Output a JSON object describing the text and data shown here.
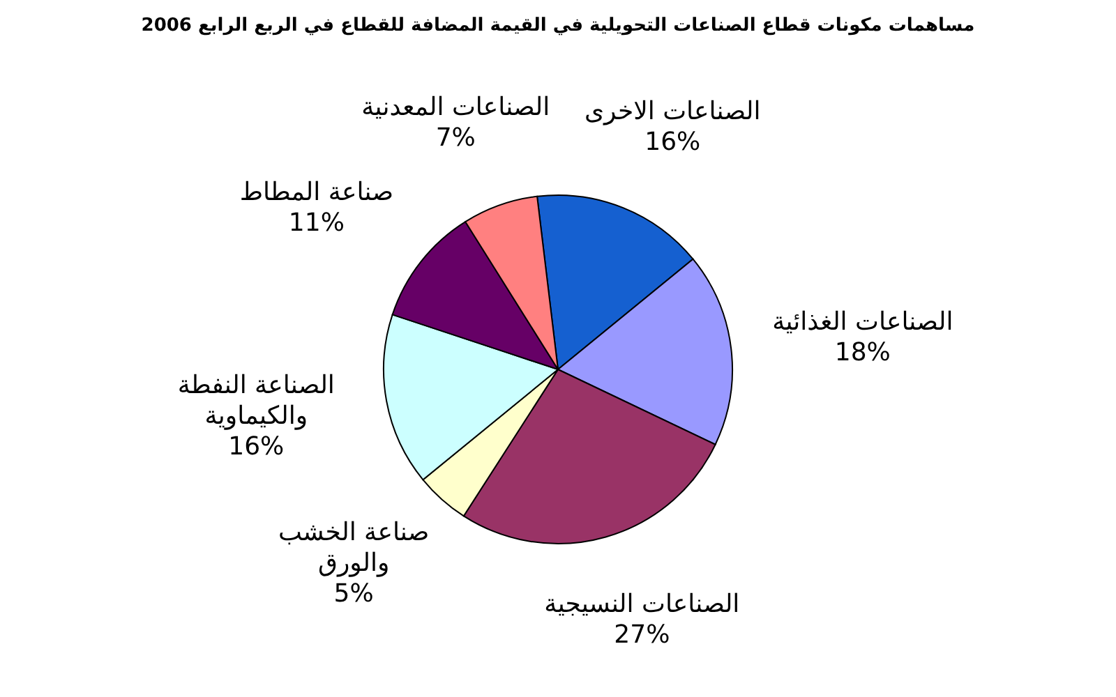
{
  "chart_data": {
    "type": "pie",
    "title": "مساهمات مكونات قطاع الصناعات التحويلية في القيمة المضافة للقطاع في الربع الرابع 2006",
    "categories": [
      "الصناعات الاخرى",
      "الصناعات الغذائية",
      "الصناعات النسيجية",
      "صناعة الخشب\nوالورق",
      "الصناعة النفطة\nوالكيماوية",
      "صناعة المطاط",
      "الصناعات المعدنية"
    ],
    "values": [
      16,
      18,
      27,
      5,
      16,
      11,
      7
    ],
    "colors": [
      "#1560d0",
      "#9999ff",
      "#993366",
      "#ffffcc",
      "#ccffff",
      "#660066",
      "#ff8080"
    ],
    "value_labels": [
      "16%",
      "18%",
      "27%",
      "5%",
      "16%",
      "11%",
      "7%"
    ]
  }
}
